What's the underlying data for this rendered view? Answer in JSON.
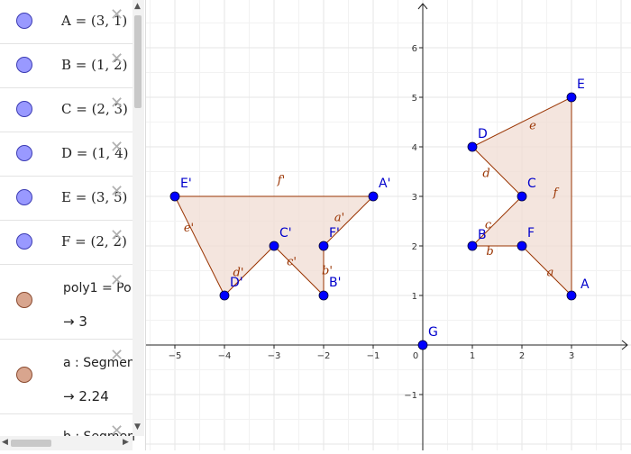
{
  "algebra_view": {
    "items": [
      {
        "type": "point",
        "name": "A",
        "text": "A = (3, 1)"
      },
      {
        "type": "point",
        "name": "B",
        "text": "B = (1, 2)"
      },
      {
        "type": "point",
        "name": "C",
        "text": "C = (2, 3)"
      },
      {
        "type": "point",
        "name": "D",
        "text": "D = (1, 4)"
      },
      {
        "type": "point",
        "name": "E",
        "text": "E = (3, 5)"
      },
      {
        "type": "point",
        "name": "F",
        "text": "F = (2, 2)"
      },
      {
        "type": "polygon",
        "text": "poly1 = Po",
        "value": "→  3"
      },
      {
        "type": "segment",
        "text": "a : Segmen",
        "value": "→  2.24"
      },
      {
        "type": "segment",
        "text": "b : Segmen"
      }
    ],
    "point_color": "#9999ff",
    "polygon_color": "#d8a58e"
  },
  "graphics_view": {
    "x_ticks": [
      "−5",
      "−4",
      "−3",
      "−2",
      "−1",
      "0",
      "1",
      "2",
      "3"
    ],
    "y_ticks": [
      "6",
      "5",
      "4",
      "3",
      "2",
      "1",
      "−1"
    ],
    "points": [
      {
        "label": "A",
        "x": 3,
        "y": 1
      },
      {
        "label": "B",
        "x": 1,
        "y": 2
      },
      {
        "label": "C",
        "x": 2,
        "y": 3
      },
      {
        "label": "D",
        "x": 1,
        "y": 4
      },
      {
        "label": "E",
        "x": 3,
        "y": 5
      },
      {
        "label": "F",
        "x": 2,
        "y": 2
      },
      {
        "label": "G",
        "x": 0,
        "y": 0
      },
      {
        "label": "A'",
        "x": -1,
        "y": 3
      },
      {
        "label": "B'",
        "x": -2,
        "y": 1
      },
      {
        "label": "C'",
        "x": -3,
        "y": 2
      },
      {
        "label": "D'",
        "x": -4,
        "y": 1
      },
      {
        "label": "E'",
        "x": -5,
        "y": 3
      },
      {
        "label": "F'",
        "x": -2,
        "y": 2
      }
    ],
    "segment_labels": {
      "original": [
        "a",
        "b",
        "c",
        "d",
        "e",
        "f"
      ],
      "image": [
        "a'",
        "b'",
        "c'",
        "d'",
        "e'",
        "f'"
      ]
    },
    "point_color": "#0000ff",
    "polygon_fill": "#f0dcd3",
    "polygon_stroke": "#993300"
  }
}
